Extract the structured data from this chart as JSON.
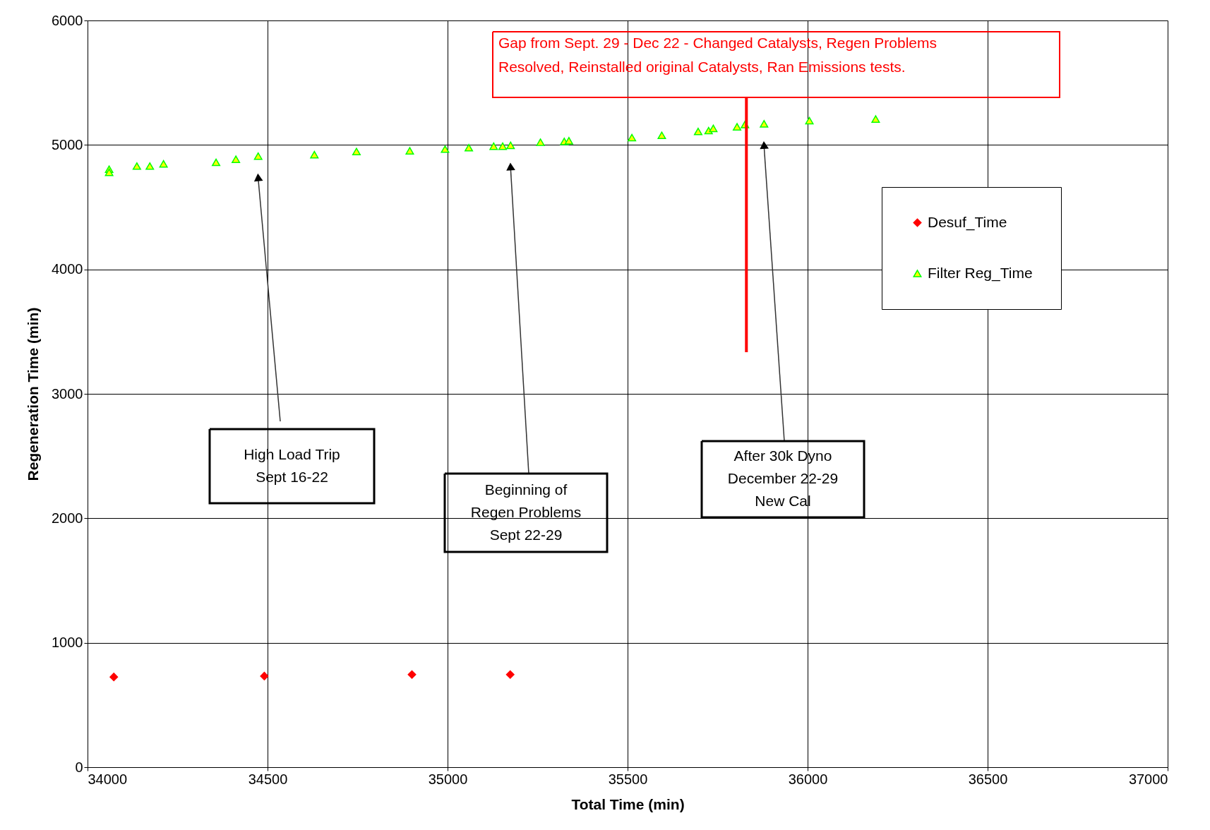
{
  "chart_data": {
    "type": "scatter",
    "xlabel": "Total Time (min)",
    "ylabel": "Regeneration Time (min)",
    "xlim": [
      34000,
      37000
    ],
    "xticks": [
      34000,
      34500,
      35000,
      35500,
      36000,
      36500,
      37000
    ],
    "ylim": [
      0,
      6000
    ],
    "yticks": [
      0,
      1000,
      2000,
      3000,
      4000,
      5000,
      6000
    ],
    "grid": true,
    "legend": "top right",
    "series": [
      {
        "name": "Desuf_Time",
        "color": "#ff0000",
        "marker": "diamond",
        "x": [
          34073,
          34491,
          34901,
          35174
        ],
        "values": [
          725,
          732,
          744,
          744
        ]
      },
      {
        "name": "Filter Reg_Time",
        "color": "#ffff00",
        "marker": "triangle",
        "x": [
          34060,
          34060,
          34137,
          34173,
          34211,
          34357,
          34412,
          34474,
          34630,
          34747,
          34895,
          34993,
          35059,
          35128,
          35153,
          35175,
          35258,
          35324,
          35337,
          35512,
          35595,
          35696,
          35725,
          35738,
          35804,
          35826,
          35879,
          36005,
          36189
        ],
        "values": [
          4805,
          4780,
          4830,
          4830,
          4848,
          4860,
          4885,
          4910,
          4922,
          4947,
          4953,
          4966,
          4978,
          4990,
          4990,
          4997,
          5022,
          5028,
          5034,
          5059,
          5077,
          5108,
          5115,
          5133,
          5146,
          5164,
          5170,
          5195,
          5208
        ]
      }
    ],
    "ref_lines": [
      {
        "axis": "x",
        "value": 35830,
        "color": "#ff0000",
        "label": "Gap from Sept. 29 - Dec 22 - Changed Catalysts, Regen Problems\nResolved, Reinstalled original Catalysts, Ran Emissions tests."
      }
    ],
    "annotations": [
      "High Load Trip\nSept 16-22",
      "Beginning of\nRegen Problems\nSept 22-29",
      "After 30k Dyno\nDecember 22-29\nNew Cal"
    ]
  }
}
